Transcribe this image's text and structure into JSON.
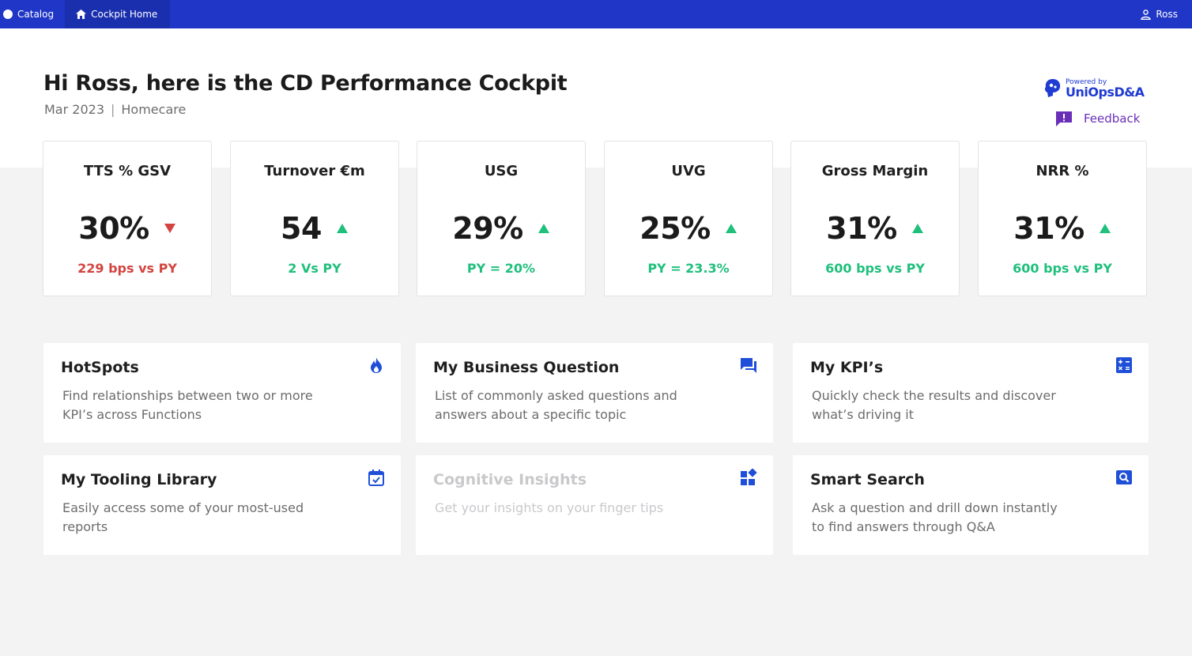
{
  "nav": {
    "catalog_label": "Catalog",
    "home_label": "Cockpit Home",
    "user_label": "Ross"
  },
  "header": {
    "title": "Hi Ross, here is the CD Performance Cockpit",
    "period": "Mar 2023",
    "separator": "|",
    "category": "Homecare",
    "brand_small": "Powered by",
    "brand_big": "UniOpsD&A",
    "feedback_label": "Feedback"
  },
  "kpis": [
    {
      "title": "TTS % GSV",
      "value": "30%",
      "trend": "down",
      "delta": "229 bps vs PY"
    },
    {
      "title": "Turnover €m",
      "value": "54",
      "trend": "up",
      "delta": "2 Vs PY"
    },
    {
      "title": "USG",
      "value": "29%",
      "trend": "up",
      "delta": "PY = 20%"
    },
    {
      "title": "UVG",
      "value": "25%",
      "trend": "up",
      "delta": "PY = 23.3%"
    },
    {
      "title": "Gross Margin",
      "value": "31%",
      "trend": "up",
      "delta": "600 bps vs PY"
    },
    {
      "title": "NRR %",
      "value": "31%",
      "trend": "up",
      "delta": "600 bps vs PY"
    }
  ],
  "tiles": [
    {
      "title": "HotSpots",
      "desc": "Find relationships between two or more KPI’s across Functions",
      "icon": "flame-icon"
    },
    {
      "title": "My Business Question",
      "desc": "List of commonly asked questions and answers about a specific topic",
      "icon": "chat-icon"
    },
    {
      "title": "My KPI’s",
      "desc": "Quickly check the results and discover what’s driving it",
      "icon": "calculator-icon"
    },
    {
      "title": "My Tooling Library",
      "desc": "Easily access some of your most-used reports",
      "icon": "calendar-check-icon"
    },
    {
      "title": "Cognitive Insights",
      "desc": "Get your insights on your finger tips",
      "icon": "widgets-icon"
    },
    {
      "title": "Smart Search",
      "desc": "Ask a question and drill down instantly to find answers through Q&A",
      "icon": "search-icon"
    }
  ],
  "colors": {
    "nav_bg": "#1f36c7",
    "positive": "#1fbf7c",
    "negative": "#d2443f",
    "icon_blue": "#1f4fd8",
    "feedback_purple": "#6a2fb8"
  }
}
